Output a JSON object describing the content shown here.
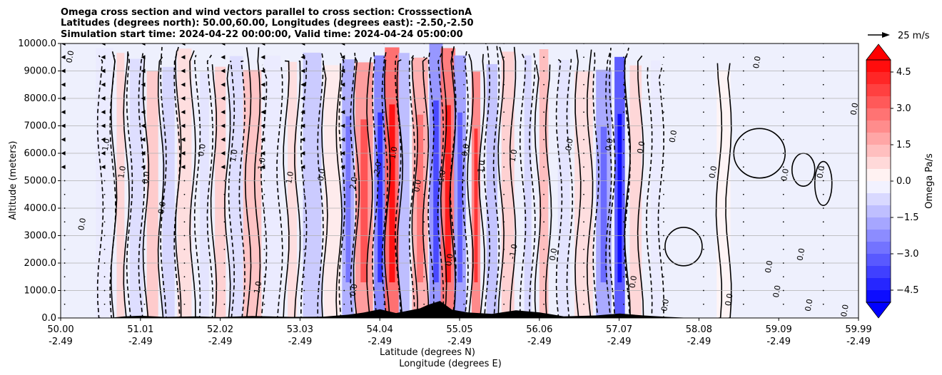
{
  "chart_data": {
    "type": "heatmap",
    "title_lines": [
      "Omega cross section and wind vectors parallel to cross section: CrosssectionA",
      "Latitudes (degrees north): 50.00,60.00, Longitudes (degrees east): -2.50,-2.50",
      "Simulation start time: 2024-04-22 00:00:00, Valid time: 2024-04-24 05:00:00"
    ],
    "ylabel": "Altitude (meters)",
    "xlabel_line1": "Latitude (degrees N)",
    "xlabel_line2": "Longitude (degrees E)",
    "ylim": [
      0,
      10000
    ],
    "y_ticks": [
      "0.0",
      "1000.0",
      "2000.0",
      "3000.0",
      "4000.0",
      "5000.0",
      "6000.0",
      "7000.0",
      "8000.0",
      "9000.0",
      "10000.0"
    ],
    "x_ticks": [
      {
        "lat": "50.00",
        "lon": "-2.49"
      },
      {
        "lat": "51.01",
        "lon": "-2.49"
      },
      {
        "lat": "52.02",
        "lon": "-2.49"
      },
      {
        "lat": "53.03",
        "lon": "-2.49"
      },
      {
        "lat": "54.04",
        "lon": "-2.49"
      },
      {
        "lat": "55.05",
        "lon": "-2.49"
      },
      {
        "lat": "56.06",
        "lon": "-2.49"
      },
      {
        "lat": "57.07",
        "lon": "-2.49"
      },
      {
        "lat": "58.08",
        "lon": "-2.49"
      },
      {
        "lat": "59.09",
        "lon": "-2.49"
      },
      {
        "lat": "59.99",
        "lon": "-2.49"
      }
    ],
    "grid": "horizontal",
    "colorbar": {
      "label": "Omega Pa/s",
      "ticks": [
        "4.5",
        "3.0",
        "1.5",
        "0.0",
        "−1.5",
        "−3.0",
        "−4.5"
      ],
      "range": [
        -5,
        5
      ],
      "colormap": "bwr",
      "extend": "both"
    },
    "quiver_key": "25 m/s",
    "contour_labels": [
      "0.0",
      "1.0",
      "-1.0",
      "2.0",
      "-2.0"
    ],
    "omega_bands": [
      {
        "lat": 50.55,
        "value": -0.3
      },
      {
        "lat": 50.75,
        "value": 0.6
      },
      {
        "lat": 50.95,
        "value": -0.5
      },
      {
        "lat": 51.15,
        "value": 0.8
      },
      {
        "lat": 51.35,
        "value": -0.6
      },
      {
        "lat": 51.55,
        "value": 0.5
      },
      {
        "lat": 51.8,
        "value": -0.4
      },
      {
        "lat": 52.0,
        "value": 0.7
      },
      {
        "lat": 52.2,
        "value": -0.5
      },
      {
        "lat": 52.4,
        "value": 0.9
      },
      {
        "lat": 52.65,
        "value": -0.3
      },
      {
        "lat": 52.9,
        "value": 0.5
      },
      {
        "lat": 53.15,
        "value": -0.8
      },
      {
        "lat": 53.4,
        "value": 0.3
      },
      {
        "lat": 53.6,
        "value": -1.2
      },
      {
        "lat": 53.8,
        "value": 1.5
      },
      {
        "lat": 54.0,
        "value": -1.8
      },
      {
        "lat": 54.15,
        "value": 2.2
      },
      {
        "lat": 54.3,
        "value": -1.0
      },
      {
        "lat": 54.5,
        "value": 1.2
      },
      {
        "lat": 54.7,
        "value": -1.6
      },
      {
        "lat": 54.85,
        "value": 2.0
      },
      {
        "lat": 55.0,
        "value": -1.4
      },
      {
        "lat": 55.2,
        "value": 1.8
      },
      {
        "lat": 55.4,
        "value": -0.9
      },
      {
        "lat": 55.6,
        "value": 0.7
      },
      {
        "lat": 55.85,
        "value": -0.6
      },
      {
        "lat": 56.05,
        "value": 1.0
      },
      {
        "lat": 56.3,
        "value": -0.4
      },
      {
        "lat": 56.55,
        "value": 0.5
      },
      {
        "lat": 56.8,
        "value": -1.3
      },
      {
        "lat": 57.0,
        "value": -2.5
      },
      {
        "lat": 57.2,
        "value": 0.6
      },
      {
        "lat": 57.45,
        "value": -0.3
      },
      {
        "lat": 58.3,
        "value": 0.15
      }
    ]
  }
}
